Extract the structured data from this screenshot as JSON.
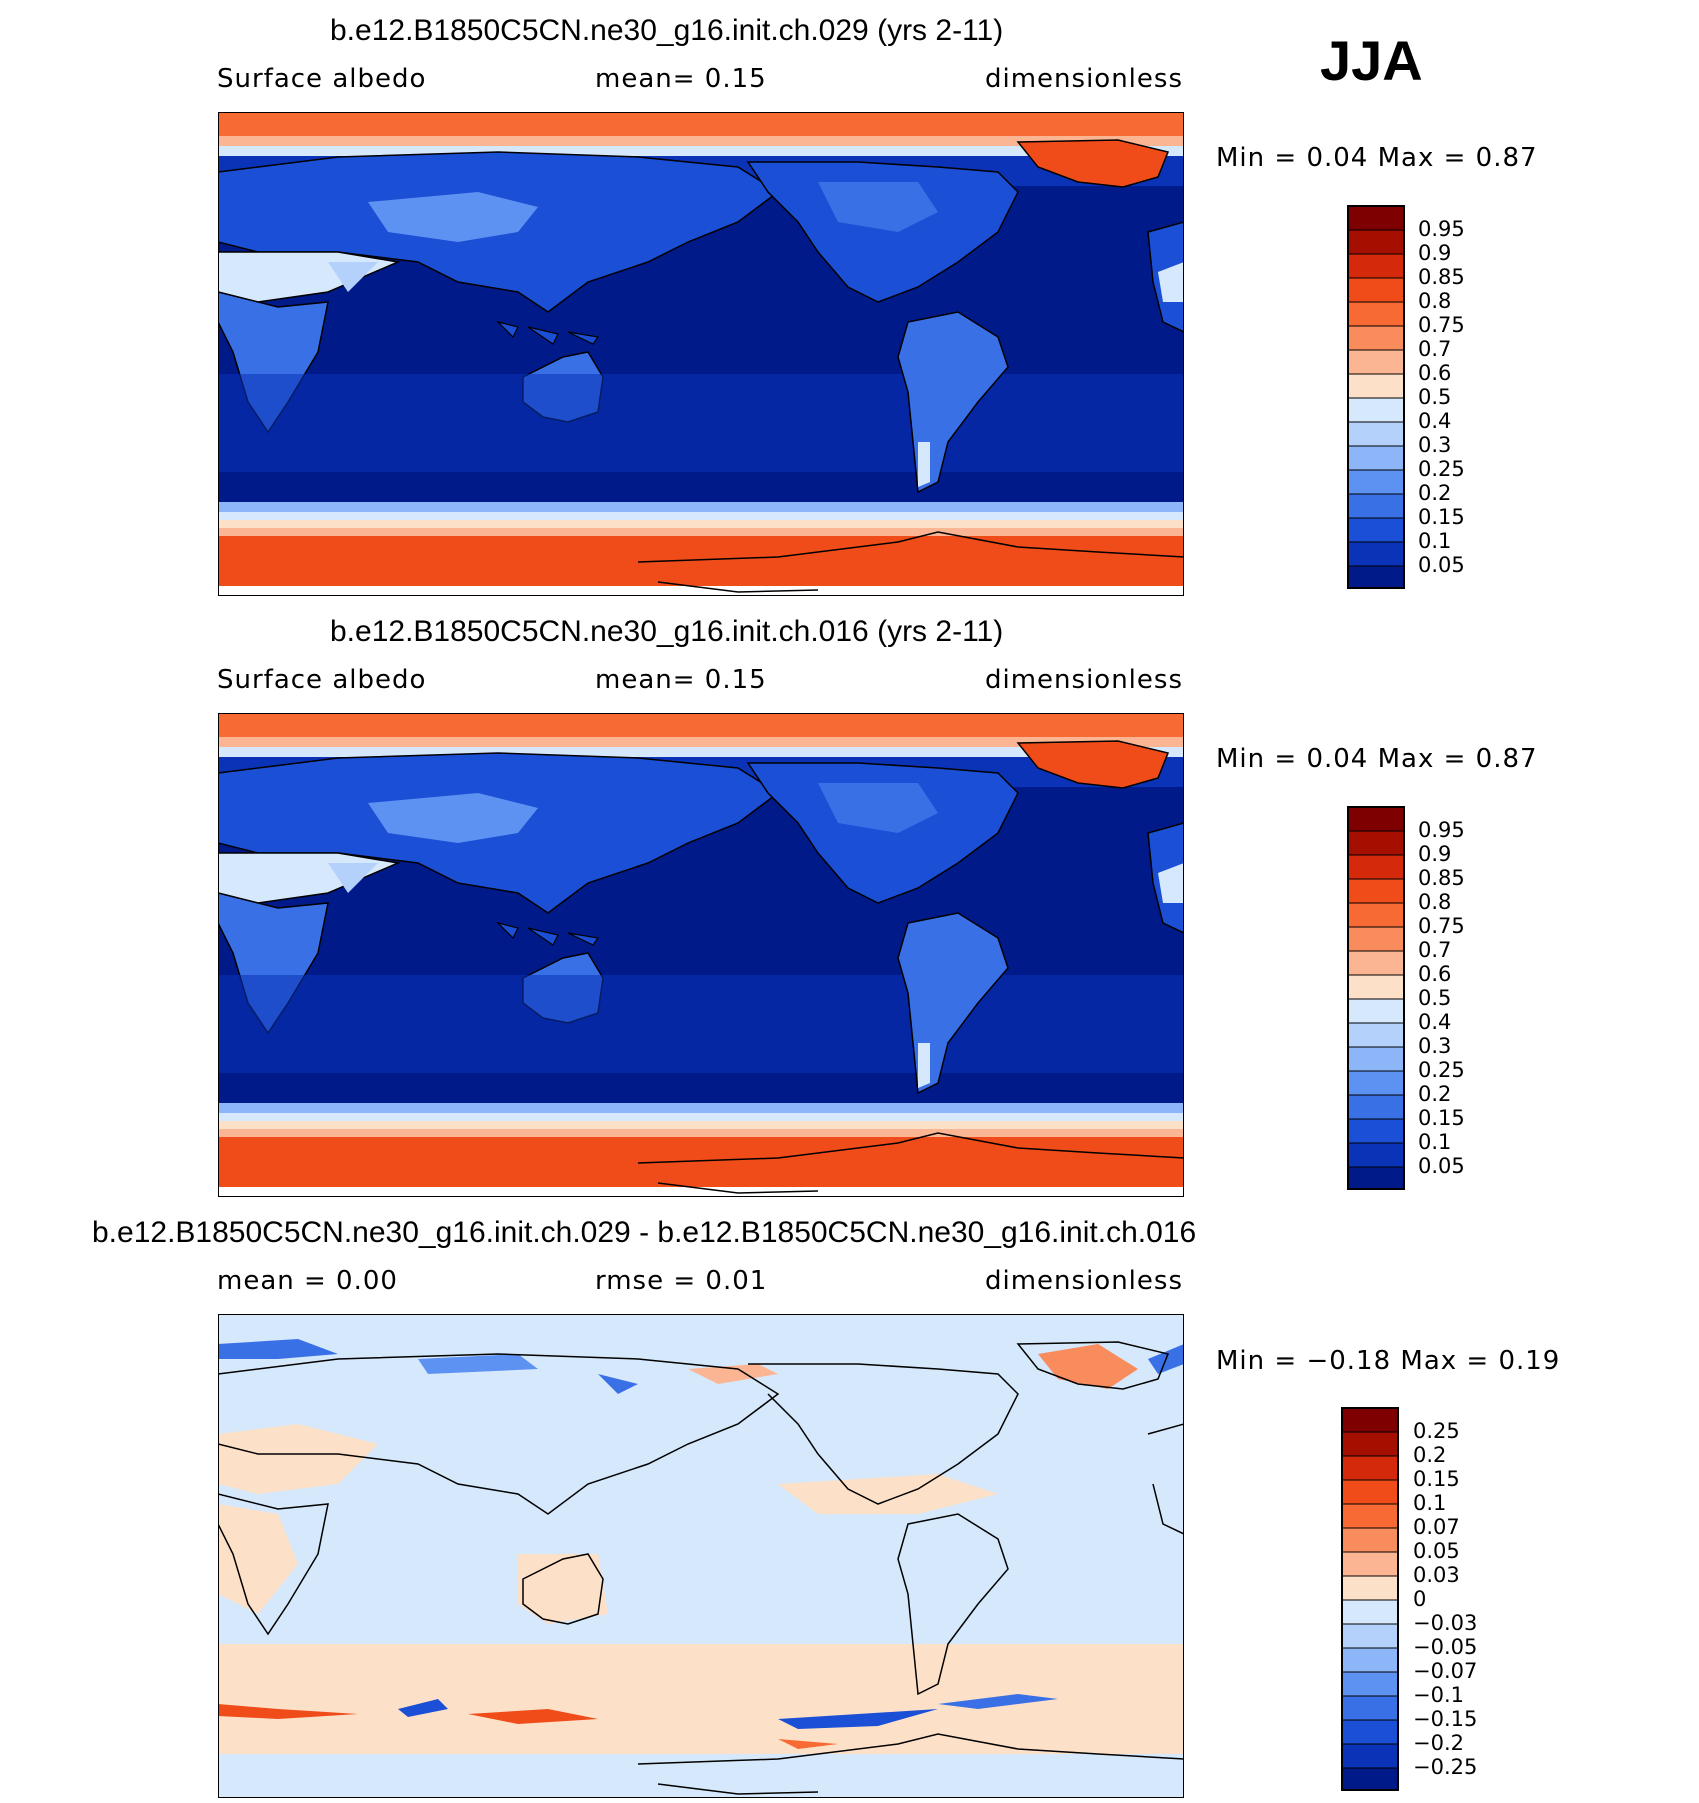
{
  "season": "JJA",
  "panels": [
    {
      "title": "b.e12.B1850C5CN.ne30_g16.init.ch.029 (yrs 2-11)",
      "left": "Surface  albedo",
      "center": "mean=    0.15",
      "right": "dimensionless",
      "minmax": "Min  =     0.04  Max  =     0.87",
      "colorbar": {
        "labels": [
          "0.95",
          "0.9",
          "0.85",
          "0.8",
          "0.75",
          "0.7",
          "0.6",
          "0.5",
          "0.4",
          "0.3",
          "0.25",
          "0.2",
          "0.15",
          "0.1",
          "0.05"
        ],
        "colors": [
          "#7f0000",
          "#a50f00",
          "#d42a0b",
          "#f04c1a",
          "#f76a34",
          "#f98c5c",
          "#fbb592",
          "#fde0c8",
          "#d6e8fb",
          "#b4d1fb",
          "#8cb6f8",
          "#5e92f2",
          "#3a70e6",
          "#1b4fd6",
          "#0a33b8",
          "#001a8a"
        ]
      }
    },
    {
      "title": "b.e12.B1850C5CN.ne30_g16.init.ch.016 (yrs 2-11)",
      "left": "Surface  albedo",
      "center": "mean=    0.15",
      "right": "dimensionless",
      "minmax": "Min  =     0.04  Max  =     0.87",
      "colorbar": {
        "labels": [
          "0.95",
          "0.9",
          "0.85",
          "0.8",
          "0.75",
          "0.7",
          "0.6",
          "0.5",
          "0.4",
          "0.3",
          "0.25",
          "0.2",
          "0.15",
          "0.1",
          "0.05"
        ],
        "colors": [
          "#7f0000",
          "#a50f00",
          "#d42a0b",
          "#f04c1a",
          "#f76a34",
          "#f98c5c",
          "#fbb592",
          "#fde0c8",
          "#d6e8fb",
          "#b4d1fb",
          "#8cb6f8",
          "#5e92f2",
          "#3a70e6",
          "#1b4fd6",
          "#0a33b8",
          "#001a8a"
        ]
      }
    },
    {
      "title": "b.e12.B1850C5CN.ne30_g16.init.ch.029 - b.e12.B1850C5CN.ne30_g16.init.ch.016",
      "left": "mean  =     0.00",
      "center": "rmse  =     0.01",
      "right": "dimensionless",
      "minmax": "Min  =   −0.18  Max  =     0.19",
      "colorbar": {
        "labels": [
          "0.25",
          "0.2",
          "0.15",
          "0.1",
          "0.07",
          "0.05",
          "0.03",
          "0",
          "−0.03",
          "−0.05",
          "−0.07",
          "−0.1",
          "−0.15",
          "−0.2",
          "−0.25"
        ],
        "colors": [
          "#7f0000",
          "#a50f00",
          "#d42a0b",
          "#f04c1a",
          "#f76a34",
          "#f98c5c",
          "#fbb592",
          "#fde0c8",
          "#d6e8fb",
          "#b4d1fb",
          "#8cb6f8",
          "#5e92f2",
          "#3a70e6",
          "#1b4fd6",
          "#0a33b8",
          "#001a8a"
        ]
      }
    }
  ]
}
